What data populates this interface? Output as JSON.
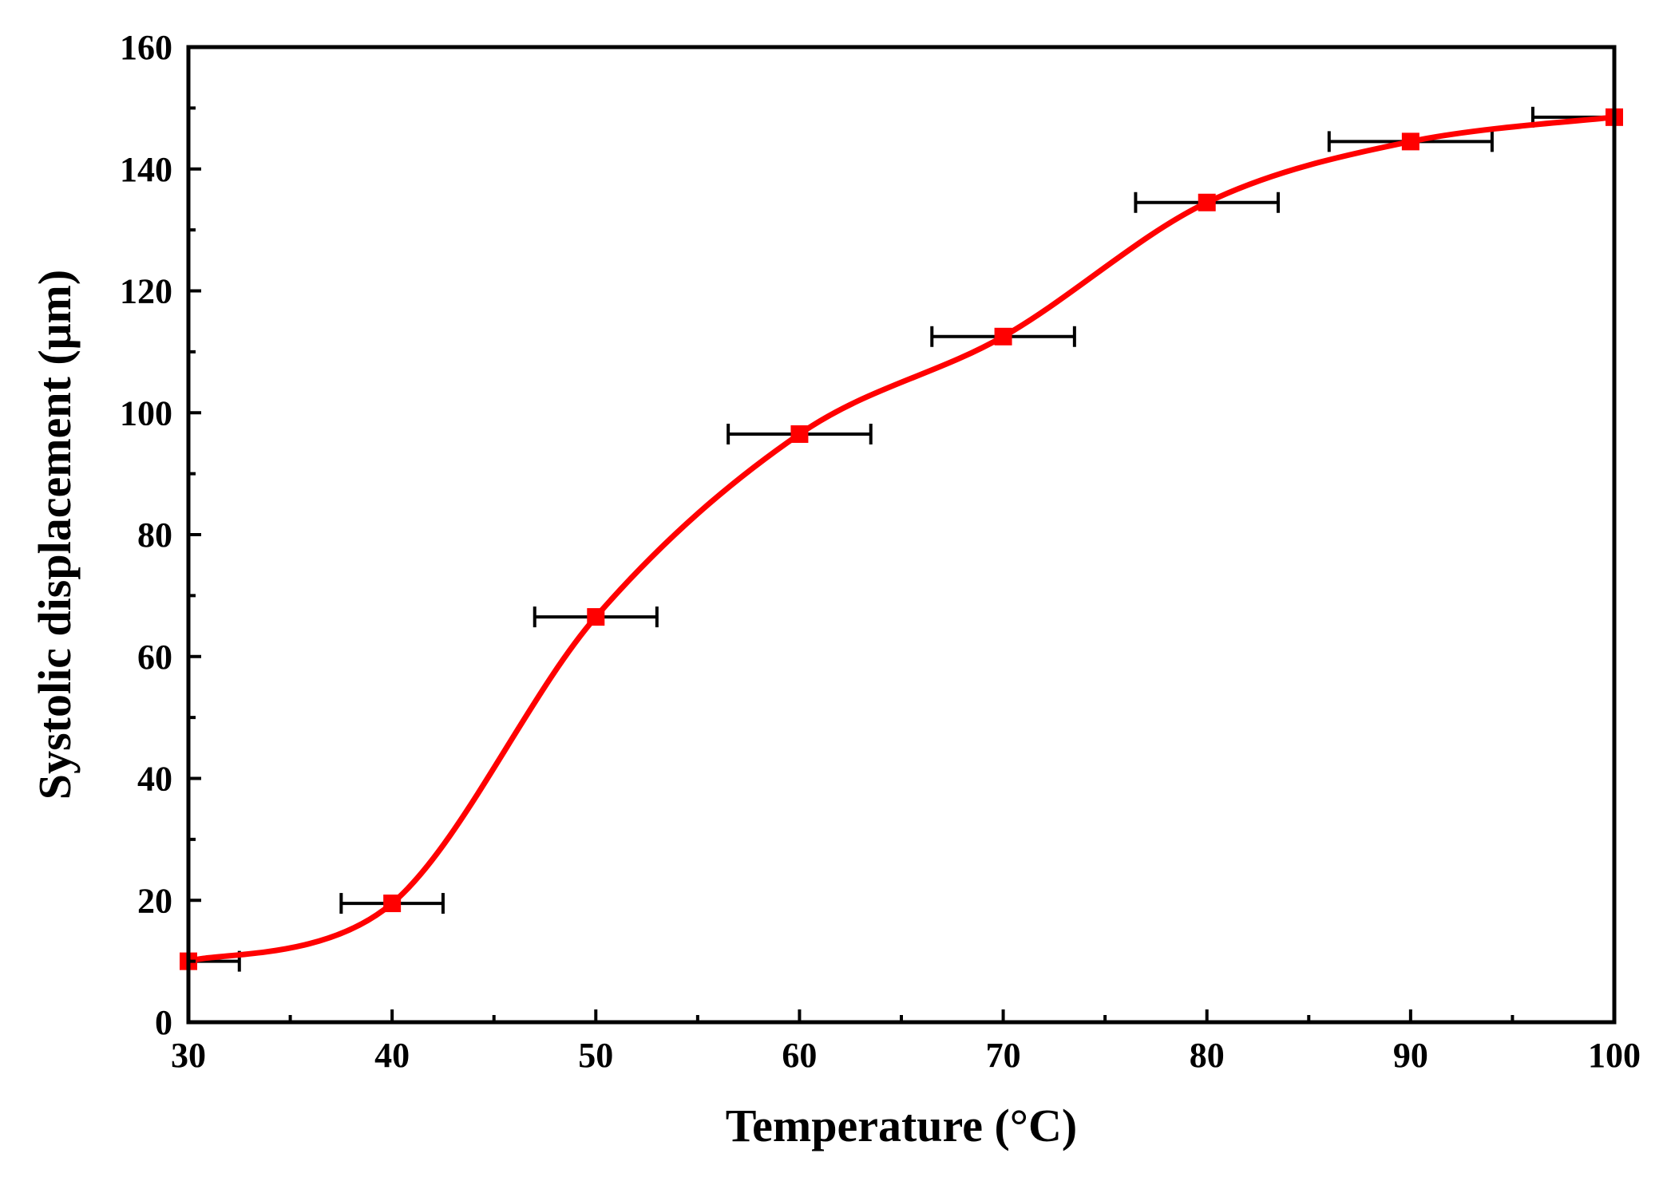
{
  "chart_data": {
    "type": "line",
    "title": "",
    "xlabel": "Temperature (°C)",
    "ylabel": "Systolic displacement (μm)",
    "xlim": [
      30,
      100
    ],
    "ylim": [
      0,
      160
    ],
    "x_ticks": [
      30,
      40,
      50,
      60,
      70,
      80,
      90,
      100
    ],
    "y_ticks": [
      0,
      20,
      40,
      60,
      80,
      100,
      120,
      140,
      160
    ],
    "x_tick_labels": [
      "30",
      "40",
      "50",
      "60",
      "70",
      "80",
      "90",
      "100"
    ],
    "y_tick_labels": [
      "0",
      "20",
      "40",
      "60",
      "80",
      "100",
      "120",
      "140",
      "160"
    ],
    "grid": false,
    "series": [
      {
        "name": "Systolic displacement",
        "color": "#ff0000",
        "marker": "square",
        "x": [
          30,
          40,
          50,
          60,
          70,
          80,
          90,
          100
        ],
        "y": [
          10,
          19.5,
          66.5,
          96.5,
          112.5,
          134.5,
          144.5,
          148.5
        ],
        "x_error": [
          2.5,
          2.5,
          3,
          3.5,
          3.5,
          3.5,
          4,
          4
        ]
      }
    ],
    "error_bar_color": "#000000"
  }
}
